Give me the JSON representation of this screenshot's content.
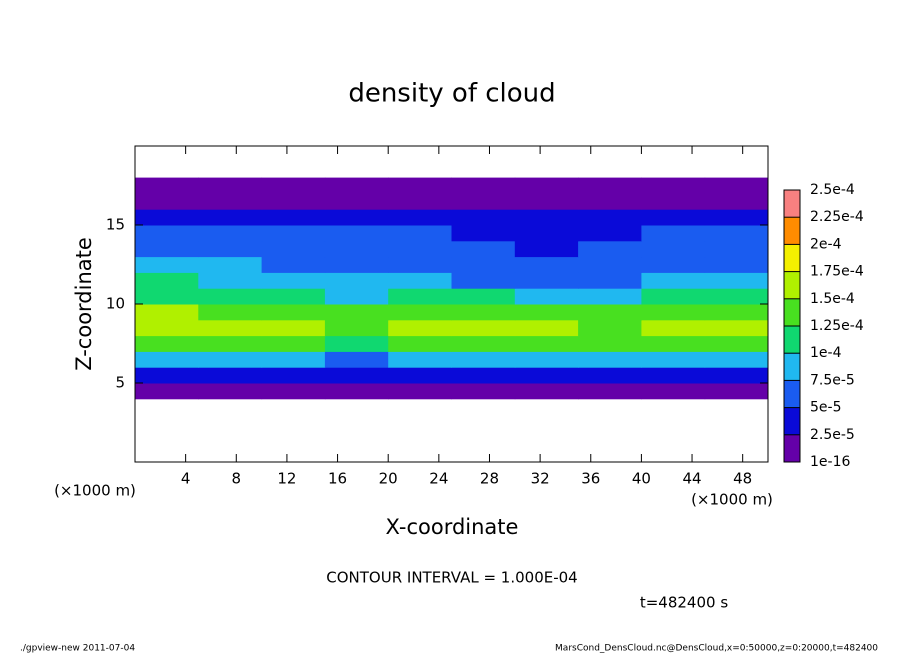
{
  "chart_data": {
    "type": "contour",
    "title": "density of cloud",
    "x_label": "X-coordinate",
    "y_label": "Z-coordinate",
    "x_unit_label": "(×1000 m)",
    "xlim": [
      0,
      50
    ],
    "ylim": [
      0,
      20
    ],
    "xticks": [
      4,
      8,
      12,
      16,
      20,
      24,
      28,
      32,
      36,
      40,
      44,
      48
    ],
    "yticks": [
      5,
      10,
      15
    ],
    "x": [
      2.5,
      7.5,
      12.5,
      17.5,
      22.5,
      27.5,
      32.5,
      37.5,
      42.5,
      47.5
    ],
    "z": [
      4.5,
      5.5,
      6.5,
      7.5,
      8.5,
      9.5,
      10.5,
      11.5,
      12.5,
      13.5,
      14.5,
      15.5,
      16.5,
      17.5
    ],
    "values": [
      [
        1e-05,
        1e-05,
        1e-05,
        1e-05,
        1e-05,
        1e-05,
        1e-05,
        1e-05,
        1e-05,
        1e-05
      ],
      [
        3e-05,
        3e-05,
        3.5e-05,
        3e-05,
        3e-05,
        2.8e-05,
        3e-05,
        3e-05,
        3.5e-05,
        3e-05
      ],
      [
        8e-05,
        7.5e-05,
        8.5e-05,
        7e-05,
        8e-05,
        8e-05,
        7.8e-05,
        8e-05,
        8.2e-05,
        8e-05
      ],
      [
        0.000145,
        0.000135,
        0.00013,
        0.00012,
        0.00013,
        0.000135,
        0.00013,
        0.000125,
        0.00013,
        0.00014
      ],
      [
        0.00017,
        0.000155,
        0.00015,
        0.00014,
        0.00016,
        0.000155,
        0.00015,
        0.00014,
        0.000155,
        0.00016
      ],
      [
        0.00015,
        0.00014,
        0.00013,
        0.00013,
        0.000145,
        0.00014,
        0.00013,
        0.000135,
        0.00014,
        0.000145
      ],
      [
        0.000115,
        0.00011,
        0.000105,
        9e-05,
        0.000105,
        0.0001,
        9.5e-05,
        9.5e-05,
        0.000105,
        0.00011
      ],
      [
        0.0001,
        9e-05,
        8.5e-05,
        7.5e-05,
        7.5e-05,
        7e-05,
        6.5e-05,
        7e-05,
        7.5e-05,
        9e-05
      ],
      [
        8e-05,
        7.5e-05,
        7e-05,
        6.5e-05,
        6.5e-05,
        6e-05,
        5.5e-05,
        6e-05,
        6.5e-05,
        7e-05
      ],
      [
        6.5e-05,
        6e-05,
        6e-05,
        5.5e-05,
        5.5e-05,
        5e-05,
        4.5e-05,
        5e-05,
        5.5e-05,
        6e-05
      ],
      [
        5.5e-05,
        5.5e-05,
        5e-05,
        5e-05,
        5e-05,
        4.5e-05,
        4e-05,
        4.5e-05,
        5e-05,
        5e-05
      ],
      [
        4.5e-05,
        4.5e-05,
        4.5e-05,
        4e-05,
        4e-05,
        4e-05,
        4e-05,
        4e-05,
        4.5e-05,
        4.5e-05
      ],
      [
        1.5e-05,
        1.5e-05,
        1.5e-05,
        1.5e-05,
        1.5e-05,
        1.5e-05,
        1.5e-05,
        1.5e-05,
        1.5e-05,
        1.5e-05
      ],
      [
        1e-05,
        1e-05,
        1e-05,
        1e-05,
        1e-05,
        1e-05,
        1e-05,
        1e-05,
        1e-05,
        1e-05
      ]
    ],
    "clim": [
      1e-16,
      0.00025
    ],
    "colorbar_ticks": [
      {
        "value": 1e-16,
        "label": "1e-16"
      },
      {
        "value": 2.5e-05,
        "label": "2.5e-5"
      },
      {
        "value": 5e-05,
        "label": "5e-5"
      },
      {
        "value": 7.5e-05,
        "label": "7.5e-5"
      },
      {
        "value": 0.0001,
        "label": "1e-4"
      },
      {
        "value": 0.000125,
        "label": "1.25e-4"
      },
      {
        "value": 0.00015,
        "label": "1.5e-4"
      },
      {
        "value": 0.000175,
        "label": "1.75e-4"
      },
      {
        "value": 0.0002,
        "label": "2e-4"
      },
      {
        "value": 0.000225,
        "label": "2.25e-4"
      },
      {
        "value": 0.00025,
        "label": "2.5e-4"
      }
    ],
    "colors": [
      "#6400a8",
      "#0a0ad8",
      "#1a5cf0",
      "#20b8f0",
      "#10d870",
      "#48e020",
      "#b0f000",
      "#f4f000",
      "#ff8c00",
      "#f88080"
    ],
    "contour_interval_text": "CONTOUR INTERVAL = 1.000E-04",
    "time_text": "t=482400 s",
    "footer_left": "./gpview-new  2011-07-04",
    "footer_right": "MarsCond_DensCloud.nc@DensCloud,x=0:50000,z=0:20000,t=482400"
  }
}
